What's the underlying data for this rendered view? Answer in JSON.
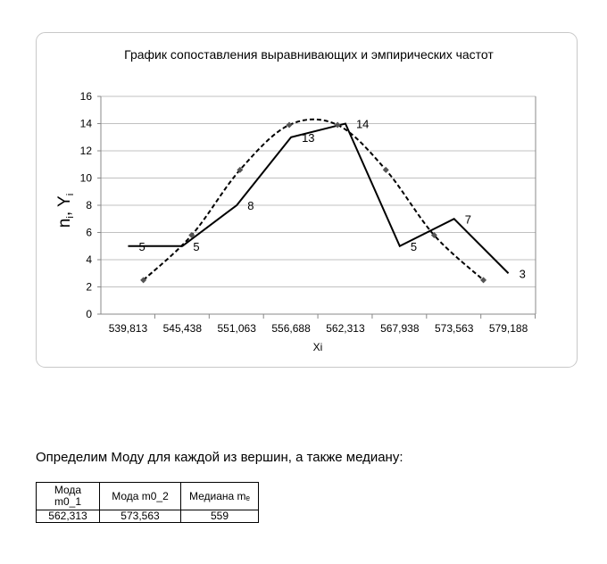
{
  "chart_data": {
    "type": "line",
    "title": "График сопоставления выравнивающих и эмпирических частот",
    "xlabel": "Xi",
    "ylabel": [
      "n",
      "i",
      ", Y",
      "i"
    ],
    "xlim": [
      537.0,
      582.0
    ],
    "xticks": [
      {
        "value": 539.813,
        "label": "539,813"
      },
      {
        "value": 545.438,
        "label": "545,438"
      },
      {
        "value": 551.063,
        "label": "551,063"
      },
      {
        "value": 556.688,
        "label": "556,688"
      },
      {
        "value": 562.313,
        "label": "562,313"
      },
      {
        "value": 567.938,
        "label": "567,938"
      },
      {
        "value": 573.563,
        "label": "573,563"
      },
      {
        "value": 579.188,
        "label": "579,188"
      }
    ],
    "ylim": [
      0,
      16
    ],
    "yticks": [
      0,
      2,
      4,
      6,
      8,
      10,
      12,
      14,
      16
    ],
    "grid": true,
    "series": [
      {
        "color": "#000000",
        "style": "solid",
        "data_labels": true,
        "x": [
          539.813,
          545.438,
          551.063,
          556.688,
          562.313,
          567.938,
          573.563,
          579.188
        ],
        "values": [
          5,
          5,
          8,
          13,
          14,
          5,
          7,
          3
        ]
      },
      {
        "color": "#000000",
        "style": "dashed",
        "smooth": true,
        "marker_color": "#555555",
        "x": [
          541.4,
          546.4,
          551.4,
          556.5,
          561.5,
          566.5,
          571.5,
          576.6
        ],
        "values": [
          2.5,
          5.8,
          10.6,
          13.9,
          13.9,
          10.6,
          5.8,
          2.5
        ]
      }
    ]
  },
  "text": {
    "paragraph": "Определим Моду для каждой из вершин, а также медиану:"
  },
  "table": {
    "header": [
      "Мода m0_1",
      "Мода m0_2",
      "Медиана mₑ"
    ],
    "rows": [
      [
        "562,313",
        "573,563",
        "559"
      ]
    ]
  }
}
